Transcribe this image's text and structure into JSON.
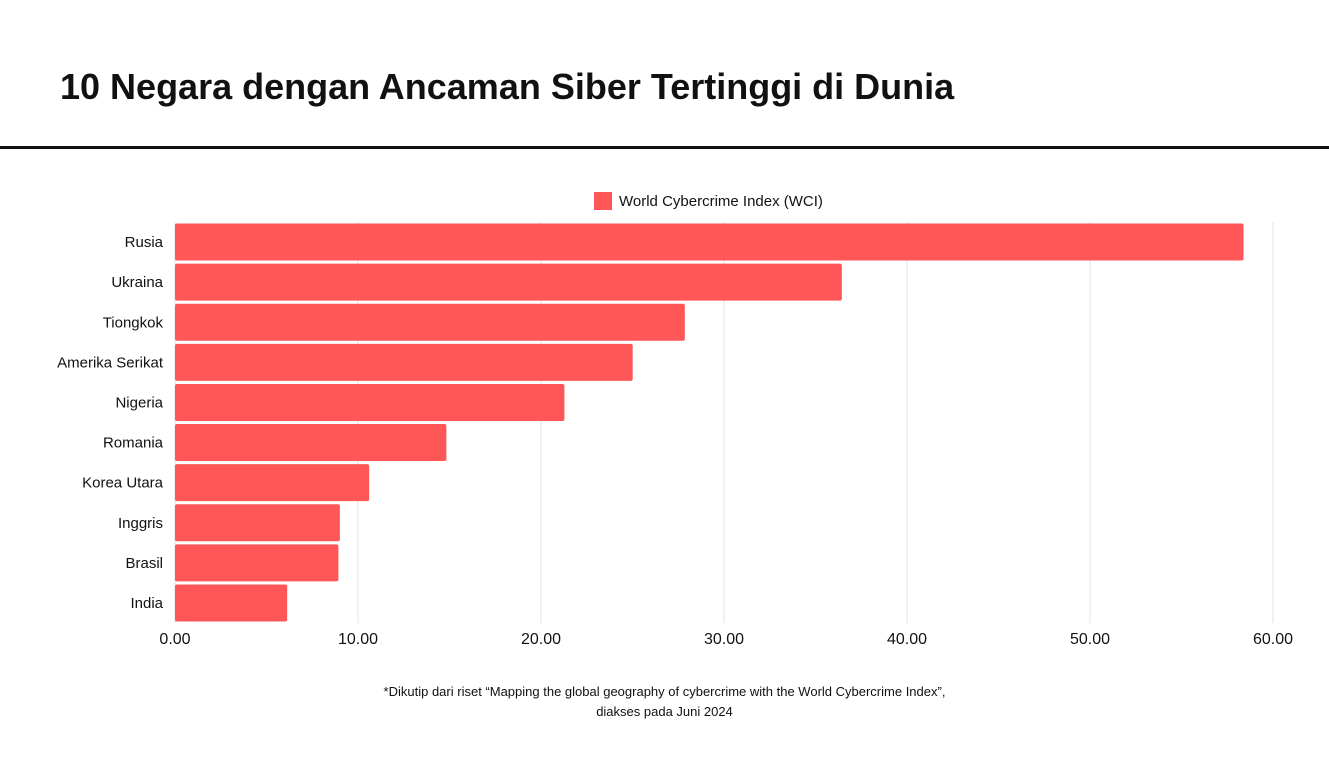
{
  "title": "10 Negara dengan Ancaman Siber Tertinggi di Dunia",
  "footnote": {
    "line1": "*Dikutip dari riset “Mapping the global geography of cybercrime with the World Cybercrime Index”,",
    "line2": "diakses pada Juni 2024"
  },
  "colors": {
    "bar": "#FF5757",
    "grid": "#e3e3e3"
  },
  "chart_data": {
    "type": "bar",
    "orientation": "horizontal",
    "title": "10 Negara dengan Ancaman Siber Tertinggi di Dunia",
    "categories": [
      "Rusia",
      "Ukraina",
      "Tiongkok",
      "Amerika Serikat",
      "Nigeria",
      "Romania",
      "Korea Utara",
      "Inggris",
      "Brasil",
      "India"
    ],
    "series": [
      {
        "name": "World Cybercrime Index (WCI)",
        "values": [
          58.39,
          36.44,
          27.86,
          25.01,
          21.28,
          14.83,
          10.61,
          9.01,
          8.93,
          6.13
        ]
      }
    ],
    "xlim": [
      0,
      60
    ],
    "xticks": [
      "0.00",
      "10.00",
      "20.00",
      "30.00",
      "40.00",
      "50.00",
      "60.00"
    ],
    "xtick_values": [
      0,
      10,
      20,
      30,
      40,
      50,
      60
    ],
    "grid": true,
    "legend": "top-center",
    "xlabel": "",
    "ylabel": ""
  }
}
